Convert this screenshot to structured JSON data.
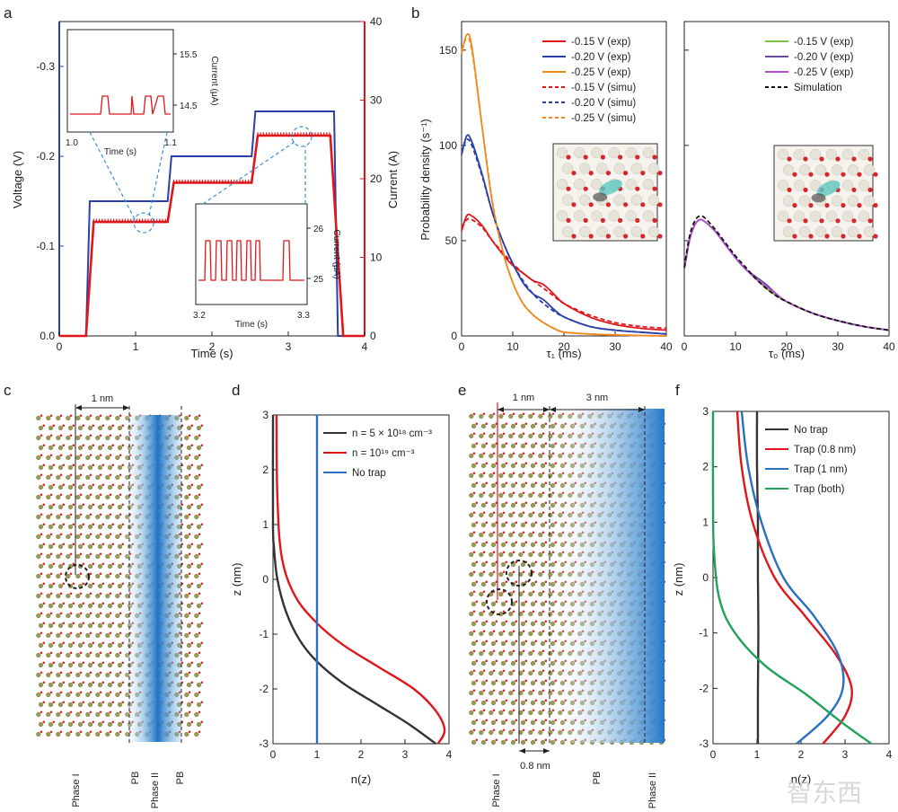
{
  "panels": {
    "a": {
      "label": "a",
      "chart_data": {
        "type": "line",
        "xlabel": "Time (s)",
        "ylabel_left": "Voltage (V)",
        "ylabel_right": "Current (A)",
        "xlim": [
          0,
          4
        ],
        "ylim_left": [
          0.0,
          -0.35
        ],
        "ylim_right": [
          0,
          40
        ],
        "xticks": [
          "0",
          "1",
          "2",
          "3",
          "4"
        ],
        "yticks_left": [
          "0.0",
          "-0.1",
          "-0.2",
          "-0.3"
        ],
        "yticks_right": [
          "0",
          "10",
          "20",
          "30",
          "40"
        ],
        "series": [
          {
            "name": "Voltage",
            "axis": "left",
            "color": "#2b3fa8",
            "x": [
              0,
              0.35,
              0.4,
              1.42,
              1.47,
              2.52,
              2.57,
              3.6,
              3.65,
              4
            ],
            "y": [
              0,
              0,
              -0.15,
              -0.15,
              -0.2,
              -0.2,
              -0.25,
              -0.25,
              0,
              0
            ]
          },
          {
            "name": "Current",
            "axis": "right",
            "color": "#e0161b",
            "x": [
              0,
              0.35,
              0.45,
              1.42,
              1.5,
              2.52,
              2.6,
              3.55,
              3.72,
              4
            ],
            "y": [
              0,
              0,
              14.5,
              14.5,
              19.5,
              19.5,
              25.5,
              25.5,
              0,
              0
            ]
          }
        ],
        "insets": [
          {
            "xlabel": "Time (s)",
            "ylabel": "Current (μA)",
            "xticks": [
              "1.0",
              "1.1"
            ],
            "yticks": [
              "14.5",
              "15.5"
            ]
          },
          {
            "xlabel": "Time (s)",
            "ylabel": "Current (μA)",
            "xticks": [
              "3.2",
              "3.3"
            ],
            "yticks": [
              "25",
              "26"
            ]
          }
        ]
      }
    },
    "b": {
      "label": "b",
      "chart_data": [
        {
          "type": "line",
          "xlabel": "τ₁ (ms)",
          "ylabel": "Probability density (s⁻¹)",
          "xlim": [
            0,
            40
          ],
          "ylim": [
            0,
            165
          ],
          "xticks": [
            "0",
            "10",
            "20",
            "30",
            "40"
          ],
          "yticks": [
            "0",
            "50",
            "100",
            "150"
          ],
          "series": [
            {
              "name": "-0.15 V (exp)",
              "color": "#e0161b",
              "dash": false,
              "x": [
                0,
                1,
                2,
                4,
                6,
                8,
                10,
                12,
                14,
                16,
                18,
                20,
                25,
                30,
                35,
                40
              ],
              "y": [
                55,
                63,
                63,
                58,
                50,
                43,
                37,
                33,
                29,
                27,
                22,
                17,
                10,
                6,
                4,
                3
              ]
            },
            {
              "name": "-0.20 V (exp)",
              "color": "#2b3fa8",
              "dash": false,
              "x": [
                0,
                1,
                2,
                4,
                6,
                8,
                10,
                12,
                14,
                16,
                18,
                20,
                25,
                30,
                35,
                40
              ],
              "y": [
                95,
                105,
                102,
                85,
                65,
                50,
                38,
                28,
                22,
                19,
                14,
                10,
                5,
                3,
                2,
                1
              ]
            },
            {
              "name": "-0.25 V (exp)",
              "color": "#f08a1e",
              "dash": false,
              "x": [
                0,
                1,
                2,
                4,
                6,
                8,
                10,
                12,
                14,
                16,
                18,
                20,
                25,
                30,
                35,
                40
              ],
              "y": [
                148,
                158,
                152,
                110,
                70,
                45,
                28,
                17,
                11,
                7,
                4,
                2,
                1,
                0.5,
                0.2,
                0
              ]
            },
            {
              "name": "-0.15 V (simu)",
              "color": "#e0161b",
              "dash": true,
              "x": [
                0,
                1,
                2,
                4,
                6,
                8,
                10,
                12,
                14,
                16,
                18,
                20,
                25,
                30,
                35,
                40
              ],
              "y": [
                57,
                61,
                61,
                57,
                50,
                44,
                38,
                33,
                29,
                25,
                21,
                17,
                11,
                7,
                5,
                4
              ]
            },
            {
              "name": "-0.20 V (simu)",
              "color": "#2b3fa8",
              "dash": true,
              "x": [
                0,
                1,
                2,
                4,
                6,
                8,
                10,
                12,
                14,
                16,
                18,
                20,
                25,
                30,
                35,
                40
              ],
              "y": [
                96,
                103,
                100,
                84,
                65,
                50,
                38,
                29,
                22,
                17,
                13,
                10,
                5,
                3,
                2,
                1
              ]
            },
            {
              "name": "-0.25 V (simu)",
              "color": "#f08a1e",
              "dash": true,
              "x": [
                0,
                1,
                2,
                4,
                6,
                8,
                10,
                12,
                14,
                16,
                18,
                20,
                25,
                30,
                35,
                40
              ],
              "y": [
                150,
                156,
                150,
                110,
                71,
                45,
                28,
                17,
                11,
                7,
                4,
                2,
                1,
                0.5,
                0.2,
                0
              ]
            }
          ]
        },
        {
          "type": "line",
          "xlabel": "τ₀ (ms)",
          "xlim": [
            0,
            40
          ],
          "ylim": [
            0,
            165
          ],
          "xticks": [
            "0",
            "10",
            "20",
            "30",
            "40"
          ],
          "series": [
            {
              "name": "-0.15 V (exp)",
              "color": "#7bc043",
              "dash": false,
              "x": [
                0,
                1,
                2,
                3,
                4,
                6,
                8,
                10,
                12,
                14,
                16,
                18,
                20,
                25,
                30,
                35,
                40
              ],
              "y": [
                35,
                50,
                58,
                61,
                60,
                55,
                48,
                41,
                35,
                30,
                25,
                21,
                18,
                12,
                8,
                5,
                3
              ]
            },
            {
              "name": "-0.20 V (exp)",
              "color": "#6a4c9c",
              "dash": false,
              "x": [
                0,
                1,
                2,
                3,
                4,
                6,
                8,
                10,
                12,
                14,
                16,
                18,
                20,
                25,
                30,
                35,
                40
              ],
              "y": [
                35,
                50,
                58,
                61,
                60,
                55,
                48,
                41,
                35,
                31,
                27,
                22,
                18,
                12,
                8,
                5,
                3
              ]
            },
            {
              "name": "-0.25 V (exp)",
              "color": "#b04fc8",
              "dash": false,
              "x": [
                0,
                1,
                2,
                3,
                4,
                6,
                8,
                10,
                12,
                14,
                16,
                18,
                20,
                25,
                30,
                35,
                40
              ],
              "y": [
                35,
                50,
                58,
                61,
                60,
                55,
                48,
                41,
                35,
                30,
                26,
                22,
                18,
                12,
                8,
                5,
                3
              ]
            },
            {
              "name": "Simulation",
              "color": "#111111",
              "dash": true,
              "x": [
                0,
                1,
                2,
                3,
                4,
                6,
                8,
                10,
                12,
                14,
                16,
                18,
                20,
                25,
                30,
                35,
                40
              ],
              "y": [
                36,
                52,
                60,
                63,
                62,
                56,
                49,
                42,
                36,
                30,
                25,
                21,
                18,
                12,
                8,
                5,
                3
              ]
            }
          ]
        }
      ]
    },
    "c": {
      "label": "c",
      "dimension": "1 nm",
      "bottom_labels": [
        "Phase I",
        "PB",
        "Phase II",
        "PB"
      ]
    },
    "d": {
      "label": "d",
      "chart_data": {
        "type": "line",
        "xlabel": "n(z)",
        "ylabel": "z (nm)",
        "xlim": [
          0,
          4
        ],
        "ylim": [
          -3,
          3
        ],
        "xticks": [
          "0",
          "1",
          "2",
          "3",
          "4"
        ],
        "yticks": [
          "-3",
          "-2",
          "-1",
          "0",
          "1",
          "2",
          "3"
        ],
        "series": [
          {
            "name": "n = 5 × 10¹⁸ cm⁻³",
            "color": "#333333",
            "x": [
              0,
              0,
              0.02,
              0.1,
              0.3,
              0.6,
              1,
              1.6,
              2.4,
              3.1,
              3.7
            ],
            "y": [
              3,
              1,
              0.6,
              0,
              -0.6,
              -1.1,
              -1.5,
              -1.9,
              -2.3,
              -2.65,
              -3
            ]
          },
          {
            "name": "n = 10¹⁹ cm⁻³",
            "color": "#e0161b",
            "x": [
              0.08,
              0.1,
              0.2,
              0.5,
              1,
              1.6,
              2.4,
              3.2,
              3.7,
              3.9,
              3.75
            ],
            "y": [
              3,
              1.5,
              0.4,
              -0.3,
              -0.8,
              -1.2,
              -1.6,
              -2.0,
              -2.4,
              -2.75,
              -3
            ]
          },
          {
            "name": "No trap",
            "color": "#2b6fc0",
            "x": [
              1,
              1,
              1,
              1,
              1,
              1,
              1
            ],
            "y": [
              3,
              2,
              1,
              0,
              -1,
              -2,
              -3
            ]
          }
        ]
      }
    },
    "e": {
      "label": "e",
      "dimension_1": "1 nm",
      "dimension_2": "3 nm",
      "dimension_3": "0.8 nm",
      "bottom_labels": [
        "Phase I",
        "PB",
        "Phase II"
      ]
    },
    "f": {
      "label": "f",
      "chart_data": {
        "type": "line",
        "xlabel": "n(z)",
        "ylabel": "z (nm)",
        "xlim": [
          0,
          4
        ],
        "ylim": [
          -3,
          3
        ],
        "xticks": [
          "0",
          "1",
          "2",
          "3",
          "4"
        ],
        "yticks": [
          "-3",
          "-2",
          "-1",
          "0",
          "1",
          "2",
          "3"
        ],
        "series": [
          {
            "name": "No trap",
            "color": "#333333",
            "x": [
              1,
              1,
              1.02,
              1.02,
              1.03,
              1.02,
              1.02
            ],
            "y": [
              3,
              2,
              1,
              0,
              -1,
              -2,
              -3
            ]
          },
          {
            "name": "Trap (0.8 nm)",
            "color": "#e0161b",
            "x": [
              0.55,
              0.65,
              0.9,
              1.4,
              2.1,
              2.8,
              3.15,
              3.0,
              2.5
            ],
            "y": [
              3,
              2,
              1,
              0,
              -0.7,
              -1.4,
              -2.0,
              -2.5,
              -3
            ]
          },
          {
            "name": "Trap (1 nm)",
            "color": "#2b6fc0",
            "x": [
              0.65,
              0.8,
              1.1,
              1.6,
              2.3,
              2.85,
              2.95,
              2.6,
              1.9
            ],
            "y": [
              3,
              2,
              1,
              0,
              -0.7,
              -1.4,
              -2.0,
              -2.5,
              -3
            ]
          },
          {
            "name": "Trap (both)",
            "color": "#1fa35a",
            "x": [
              0,
              0,
              0.02,
              0.15,
              0.5,
              1.2,
              2.1,
              2.9,
              3.6
            ],
            "y": [
              3,
              1.5,
              0.5,
              -0.4,
              -1.0,
              -1.6,
              -2.1,
              -2.6,
              -3
            ]
          }
        ]
      }
    }
  },
  "watermark": "智东西"
}
